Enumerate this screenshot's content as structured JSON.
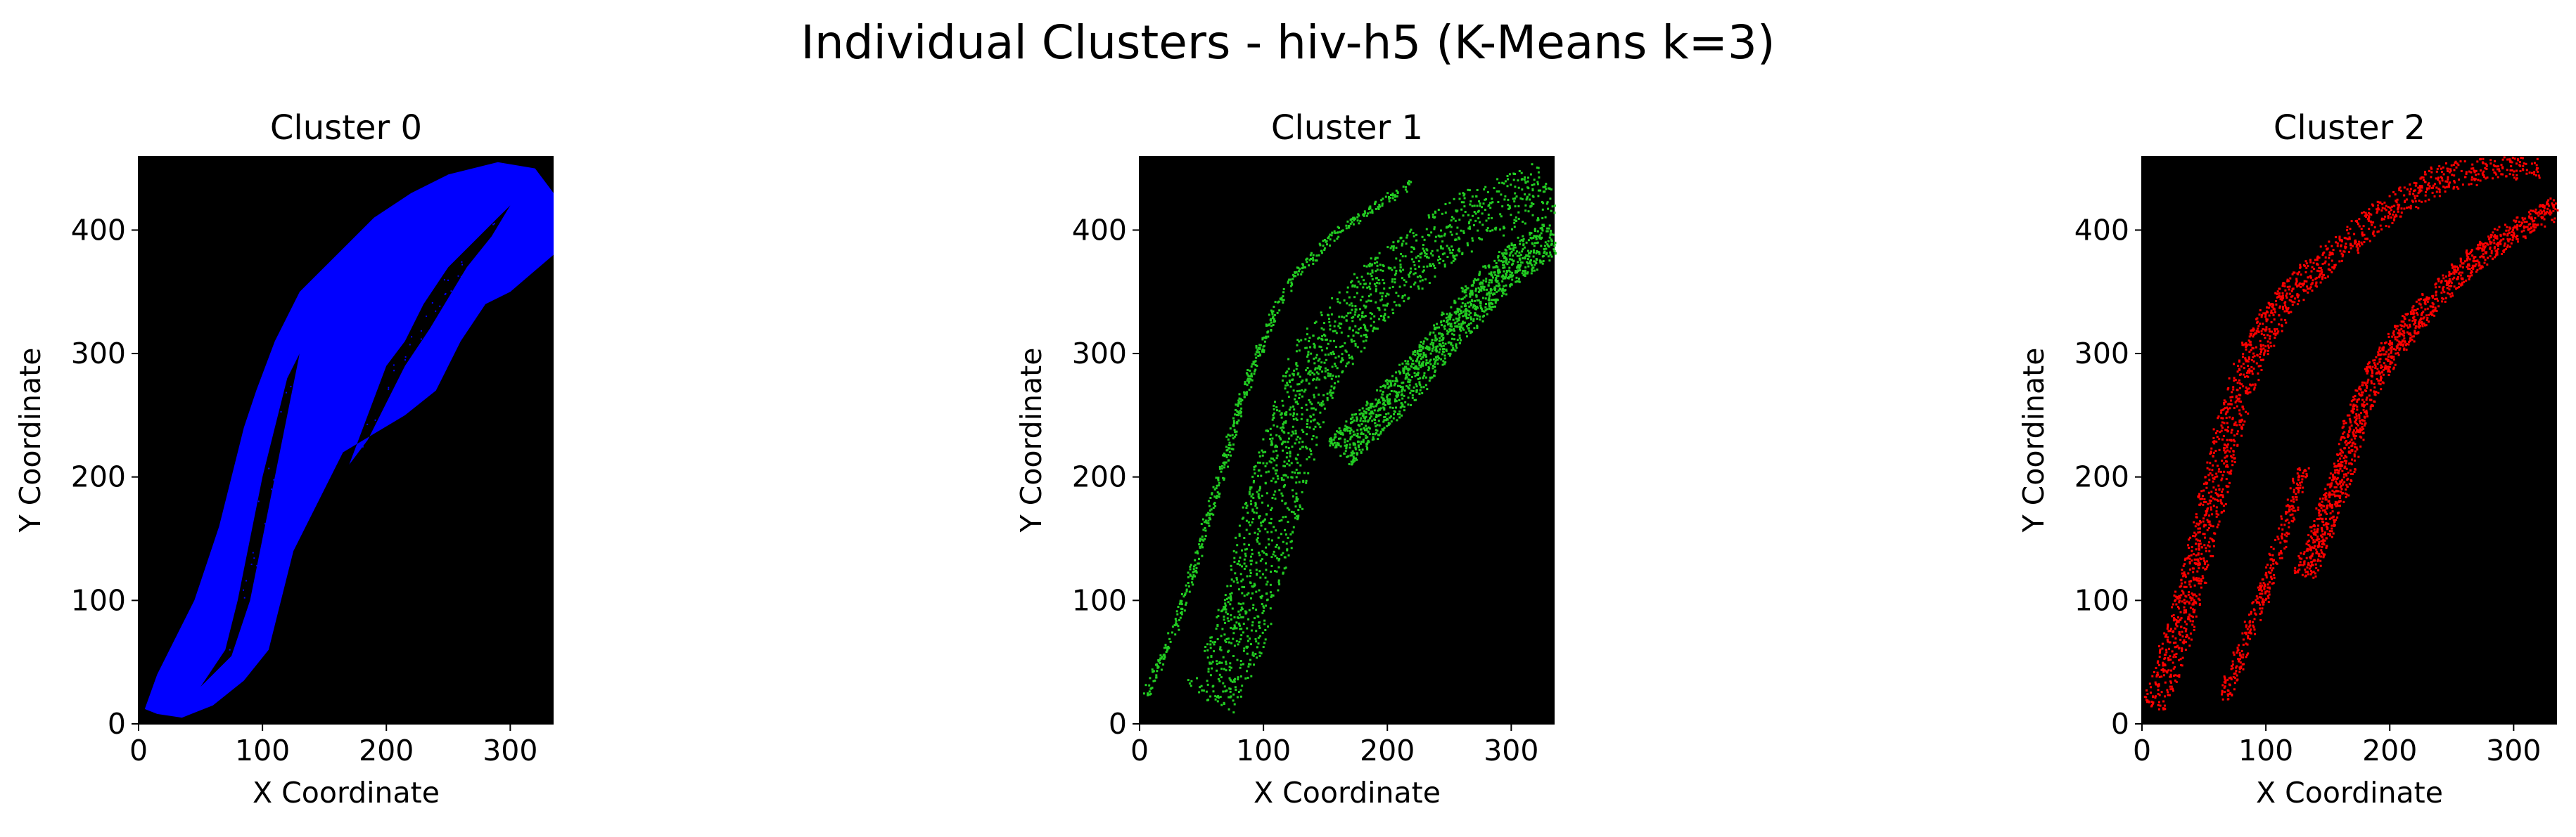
{
  "figure": {
    "title": "Individual Clusters - hiv-h5 (K-Means k=3)"
  },
  "chart_data": [
    {
      "type": "scatter",
      "title": "Cluster 0",
      "xlabel": "X Coordinate",
      "ylabel": "Y Coordinate",
      "xlim": [
        0,
        335
      ],
      "ylim": [
        0,
        460
      ],
      "xticks": [
        0,
        100,
        200,
        300
      ],
      "yticks": [
        0,
        100,
        200,
        300,
        400
      ],
      "background": "#000000",
      "point_color": "#0000ff",
      "shape_outline": [
        [
          5,
          12
        ],
        [
          15,
          40
        ],
        [
          30,
          70
        ],
        [
          45,
          100
        ],
        [
          55,
          130
        ],
        [
          65,
          160
        ],
        [
          75,
          200
        ],
        [
          85,
          240
        ],
        [
          95,
          270
        ],
        [
          110,
          310
        ],
        [
          130,
          350
        ],
        [
          150,
          370
        ],
        [
          170,
          390
        ],
        [
          190,
          410
        ],
        [
          220,
          430
        ],
        [
          250,
          445
        ],
        [
          290,
          455
        ],
        [
          320,
          450
        ],
        [
          335,
          430
        ],
        [
          335,
          380
        ],
        [
          300,
          350
        ],
        [
          280,
          340
        ],
        [
          260,
          310
        ],
        [
          240,
          270
        ],
        [
          215,
          250
        ],
        [
          190,
          235
        ],
        [
          165,
          220
        ],
        [
          145,
          180
        ],
        [
          125,
          140
        ],
        [
          115,
          100
        ],
        [
          105,
          60
        ],
        [
          85,
          35
        ],
        [
          60,
          15
        ],
        [
          35,
          5
        ],
        [
          15,
          8
        ]
      ],
      "shape_holes": [
        [
          [
            50,
            30
          ],
          [
            70,
            60
          ],
          [
            80,
            100
          ],
          [
            90,
            150
          ],
          [
            100,
            200
          ],
          [
            110,
            240
          ],
          [
            120,
            280
          ],
          [
            130,
            300
          ],
          [
            120,
            250
          ],
          [
            110,
            200
          ],
          [
            100,
            150
          ],
          [
            90,
            100
          ],
          [
            75,
            55
          ]
        ],
        [
          [
            170,
            210
          ],
          [
            185,
            250
          ],
          [
            200,
            290
          ],
          [
            215,
            310
          ],
          [
            230,
            340
          ],
          [
            250,
            370
          ],
          [
            270,
            390
          ],
          [
            290,
            410
          ],
          [
            300,
            420
          ],
          [
            285,
            395
          ],
          [
            265,
            370
          ],
          [
            250,
            345
          ],
          [
            235,
            320
          ],
          [
            215,
            290
          ],
          [
            200,
            260
          ],
          [
            185,
            230
          ]
        ]
      ]
    },
    {
      "type": "scatter",
      "title": "Cluster 1",
      "xlabel": "X Coordinate",
      "ylabel": "Y Coordinate",
      "xlim": [
        0,
        335
      ],
      "ylim": [
        0,
        460
      ],
      "xticks": [
        0,
        100,
        200,
        300
      ],
      "yticks": [
        0,
        100,
        200,
        300,
        400
      ],
      "background": "#000000",
      "point_color": "#22cc22",
      "bands": [
        {
          "path": [
            [
              5,
              25
            ],
            [
              20,
              60
            ],
            [
              35,
              100
            ],
            [
              50,
              150
            ],
            [
              65,
              200
            ],
            [
              80,
              260
            ],
            [
              95,
              300
            ],
            [
              110,
              340
            ],
            [
              130,
              370
            ],
            [
              160,
              400
            ],
            [
              190,
              420
            ],
            [
              220,
              440
            ]
          ],
          "width": 6,
          "density": 0.35
        },
        {
          "path": [
            [
              55,
              20
            ],
            [
              75,
              60
            ],
            [
              90,
              110
            ],
            [
              105,
              170
            ],
            [
              120,
              230
            ],
            [
              140,
              290
            ],
            [
              170,
              330
            ],
            [
              210,
              370
            ],
            [
              250,
              400
            ],
            [
              290,
              420
            ],
            [
              330,
              435
            ]
          ],
          "width": 45,
          "density": 1.0
        },
        {
          "path": [
            [
              160,
              220
            ],
            [
              185,
              245
            ],
            [
              210,
              270
            ],
            [
              235,
              300
            ],
            [
              260,
              330
            ],
            [
              285,
              360
            ],
            [
              310,
              380
            ],
            [
              335,
              395
            ]
          ],
          "width": 28,
          "density": 0.8
        }
      ]
    },
    {
      "type": "scatter",
      "title": "Cluster 2",
      "xlabel": "X Coordinate",
      "ylabel": "Y Coordinate",
      "xlim": [
        0,
        335
      ],
      "ylim": [
        0,
        460
      ],
      "xticks": [
        0,
        100,
        200,
        300
      ],
      "yticks": [
        0,
        100,
        200,
        300,
        400
      ],
      "background": "#000000",
      "point_color": "#ff0000",
      "bands": [
        {
          "path": [
            [
              8,
              15
            ],
            [
              22,
              50
            ],
            [
              35,
              100
            ],
            [
              48,
              150
            ],
            [
              60,
              200
            ],
            [
              72,
              250
            ],
            [
              88,
              300
            ],
            [
              110,
              340
            ],
            [
              140,
              370
            ],
            [
              170,
              395
            ],
            [
              200,
              420
            ],
            [
              235,
              440
            ],
            [
              275,
              452
            ],
            [
              320,
              455
            ]
          ],
          "width": 22,
          "density": 1.0
        },
        {
          "path": [
            [
              130,
              120
            ],
            [
              145,
              160
            ],
            [
              160,
              200
            ],
            [
              170,
              240
            ],
            [
              185,
              280
            ],
            [
              205,
              310
            ],
            [
              230,
              340
            ],
            [
              260,
              370
            ],
            [
              290,
              395
            ],
            [
              320,
              410
            ],
            [
              335,
              420
            ]
          ],
          "width": 18,
          "density": 0.85
        },
        {
          "path": [
            [
              65,
              20
            ],
            [
              80,
              60
            ],
            [
              95,
              100
            ],
            [
              108,
              140
            ],
            [
              118,
              170
            ],
            [
              130,
              210
            ]
          ],
          "width": 10,
          "density": 0.2
        }
      ]
    }
  ]
}
